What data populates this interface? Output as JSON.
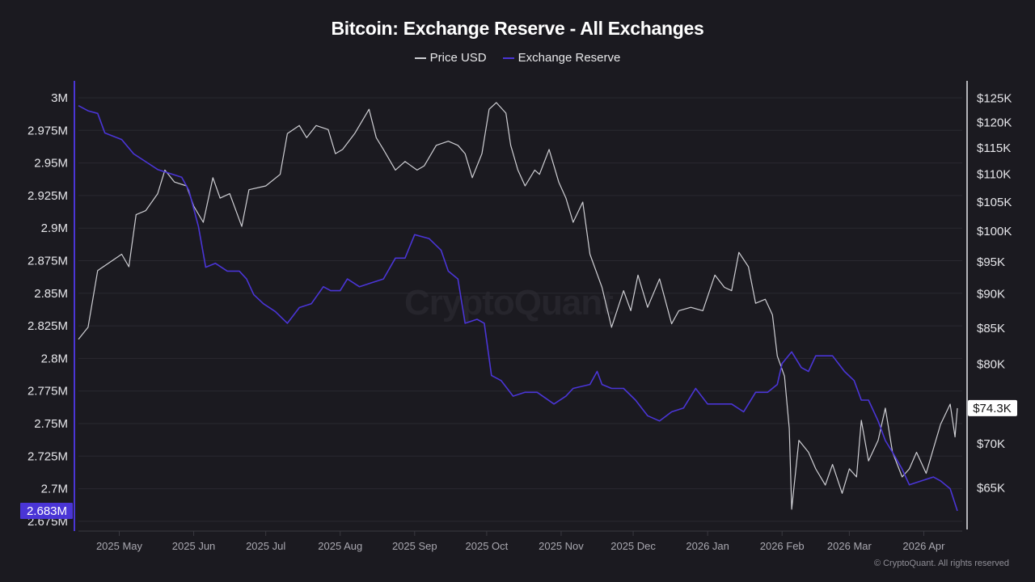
{
  "chart_data": {
    "type": "line",
    "title": "Bitcoin: Exchange Reserve - All Exchanges",
    "legend": [
      {
        "name": "Price USD",
        "color": "#cfcfd4"
      },
      {
        "name": "Exchange Reserve",
        "color": "#4a35d6"
      }
    ],
    "legend_placement": "top-center",
    "x_unit": "days since 2025-04-14",
    "x_range": [
      0,
      370
    ],
    "x_ticks": [
      {
        "day": 17,
        "label": "2025 May"
      },
      {
        "day": 48,
        "label": "2025 Jun"
      },
      {
        "day": 78,
        "label": "2025 Jul"
      },
      {
        "day": 109,
        "label": "2025 Aug"
      },
      {
        "day": 140,
        "label": "2025 Sep"
      },
      {
        "day": 170,
        "label": "2025 Oct"
      },
      {
        "day": 201,
        "label": "2025 Nov"
      },
      {
        "day": 231,
        "label": "2025 Dec"
      },
      {
        "day": 262,
        "label": "2026 Jan"
      },
      {
        "day": 293,
        "label": "2026 Feb"
      },
      {
        "day": 321,
        "label": "2026 Mar"
      },
      {
        "day": 352,
        "label": "2026 Apr"
      }
    ],
    "left_axis": {
      "label": "Exchange Reserve",
      "scale": "linear",
      "range": [
        2.67,
        3.013
      ],
      "ticks": [
        {
          "v": 3.0,
          "label": "3M"
        },
        {
          "v": 2.975,
          "label": "2.975M"
        },
        {
          "v": 2.95,
          "label": "2.95M"
        },
        {
          "v": 2.925,
          "label": "2.925M"
        },
        {
          "v": 2.9,
          "label": "2.9M"
        },
        {
          "v": 2.875,
          "label": "2.875M"
        },
        {
          "v": 2.85,
          "label": "2.85M"
        },
        {
          "v": 2.825,
          "label": "2.825M"
        },
        {
          "v": 2.8,
          "label": "2.8M"
        },
        {
          "v": 2.775,
          "label": "2.775M"
        },
        {
          "v": 2.75,
          "label": "2.75M"
        },
        {
          "v": 2.725,
          "label": "2.725M"
        },
        {
          "v": 2.7,
          "label": "2.7M"
        },
        {
          "v": 2.675,
          "label": "2.675M"
        }
      ],
      "current_label": "2.683M",
      "current_value": 2.683
    },
    "right_axis": {
      "label": "Price USD",
      "scale": "log",
      "ticks": [
        {
          "v": 125,
          "label": "$125K"
        },
        {
          "v": 120,
          "label": "$120K"
        },
        {
          "v": 115,
          "label": "$115K"
        },
        {
          "v": 110,
          "label": "$110K"
        },
        {
          "v": 105,
          "label": "$105K"
        },
        {
          "v": 100,
          "label": "$100K"
        },
        {
          "v": 95,
          "label": "$95K"
        },
        {
          "v": 90,
          "label": "$90K"
        },
        {
          "v": 85,
          "label": "$85K"
        },
        {
          "v": 80,
          "label": "$80K"
        },
        {
          "v": 70,
          "label": "$70K"
        },
        {
          "v": 65,
          "label": "$65K"
        }
      ],
      "current_label": "$74.3K",
      "current_value": 74.3
    },
    "grid": true,
    "series": [
      {
        "name": "Price USD",
        "unit": "thousand USD",
        "axis": "right",
        "x": [
          0,
          4,
          8,
          13,
          18,
          21,
          24,
          28,
          33,
          36,
          40,
          45,
          48,
          52,
          56,
          59,
          63,
          68,
          71,
          78,
          84,
          87,
          92,
          95,
          99,
          104,
          107,
          110,
          115,
          121,
          124,
          127,
          132,
          136,
          141,
          144,
          149,
          154,
          158,
          161,
          164,
          168,
          171,
          174,
          178,
          180,
          183,
          186,
          190,
          192,
          196,
          200,
          203,
          206,
          210,
          213,
          218,
          222,
          227,
          230,
          233,
          237,
          242,
          247,
          250,
          255,
          260,
          265,
          269,
          272,
          275,
          279,
          282,
          286,
          289,
          291,
          294,
          296,
          297,
          300,
          304,
          307,
          311,
          314,
          318,
          321,
          324,
          326,
          329,
          333,
          336,
          339,
          343,
          346,
          349,
          353,
          356,
          359,
          363,
          365,
          366
        ],
        "values": [
          83.4,
          85.1,
          93.6,
          94.9,
          96.2,
          94.2,
          102.8,
          103.5,
          106.5,
          110.8,
          108.6,
          107.9,
          104.3,
          101.5,
          109.4,
          105.7,
          106.5,
          100.8,
          107.2,
          107.9,
          110.0,
          117.8,
          119.4,
          117.0,
          119.4,
          118.6,
          113.9,
          114.7,
          117.8,
          122.7,
          117.0,
          114.7,
          110.8,
          112.4,
          110.8,
          111.6,
          115.5,
          116.3,
          115.5,
          113.9,
          109.4,
          113.9,
          122.7,
          124.1,
          121.9,
          115.5,
          110.8,
          107.9,
          110.8,
          110.0,
          114.7,
          108.6,
          105.7,
          101.5,
          105.0,
          96.2,
          91.0,
          85.1,
          90.5,
          87.5,
          92.9,
          88.0,
          92.3,
          85.6,
          87.5,
          88.0,
          87.5,
          92.9,
          91.0,
          90.5,
          96.5,
          94.2,
          88.6,
          89.2,
          86.9,
          81.1,
          78.4,
          71.8,
          62.7,
          70.4,
          69.0,
          67.1,
          65.3,
          67.6,
          64.4,
          67.1,
          66.2,
          72.8,
          68.0,
          70.4,
          74.3,
          69.0,
          66.2,
          67.1,
          69.0,
          66.6,
          69.4,
          72.3,
          74.8,
          70.8,
          74.3
        ]
      },
      {
        "name": "Exchange Reserve",
        "unit": "million BTC",
        "axis": "left",
        "x": [
          0,
          4,
          8,
          11,
          18,
          23,
          28,
          33,
          38,
          43,
          46,
          50,
          53,
          57,
          62,
          67,
          70,
          73,
          77,
          82,
          87,
          92,
          97,
          102,
          105,
          109,
          112,
          117,
          122,
          127,
          132,
          136,
          140,
          146,
          151,
          154,
          158,
          161,
          166,
          169,
          172,
          176,
          181,
          186,
          191,
          198,
          203,
          206,
          213,
          216,
          218,
          222,
          227,
          232,
          237,
          242,
          247,
          252,
          257,
          262,
          267,
          272,
          277,
          282,
          287,
          291,
          293,
          297,
          301,
          304,
          307,
          311,
          314,
          319,
          323,
          326,
          329,
          333,
          336,
          339,
          343,
          346,
          351,
          356,
          359,
          363,
          366
        ],
        "values": [
          2.994,
          2.99,
          2.988,
          2.973,
          2.968,
          2.957,
          2.951,
          2.945,
          2.942,
          2.939,
          2.929,
          2.901,
          2.87,
          2.873,
          2.867,
          2.867,
          2.861,
          2.849,
          2.842,
          2.836,
          2.827,
          2.839,
          2.842,
          2.855,
          2.852,
          2.852,
          2.861,
          2.855,
          2.858,
          2.861,
          2.877,
          2.877,
          2.895,
          2.892,
          2.883,
          2.867,
          2.861,
          2.827,
          2.83,
          2.827,
          2.787,
          2.783,
          2.771,
          2.774,
          2.774,
          2.765,
          2.771,
          2.777,
          2.78,
          2.79,
          2.78,
          2.777,
          2.777,
          2.768,
          2.756,
          2.752,
          2.759,
          2.762,
          2.777,
          2.765,
          2.765,
          2.765,
          2.759,
          2.774,
          2.774,
          2.78,
          2.796,
          2.805,
          2.793,
          2.79,
          2.802,
          2.802,
          2.802,
          2.79,
          2.783,
          2.768,
          2.768,
          2.752,
          2.737,
          2.728,
          2.715,
          2.703,
          2.706,
          2.709,
          2.706,
          2.7,
          2.683
        ]
      }
    ]
  },
  "watermark": "CryptoQuant",
  "footer": "© CryptoQuant. All rights reserved"
}
